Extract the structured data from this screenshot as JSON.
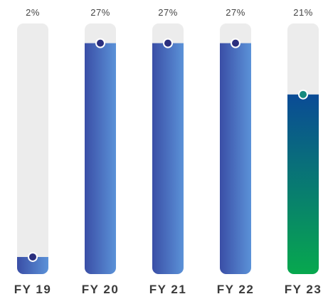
{
  "chart_data": {
    "type": "progress-bar",
    "categories": [
      "FY 19",
      "FY 20",
      "FY 21",
      "FY 22",
      "FY 23"
    ],
    "values": [
      2,
      27,
      27,
      27,
      21
    ],
    "value_labels": [
      "2%",
      "27%",
      "27%",
      "27%",
      "21%"
    ],
    "ylim": [
      0,
      29.3
    ],
    "track_color": "#ececec",
    "fills": [
      {
        "from": "#3a4ea6",
        "to": "#5b92d8",
        "direction": "horizontal",
        "dot": "#2b2f7e"
      },
      {
        "from": "#3a4ea6",
        "to": "#5b92d8",
        "direction": "horizontal",
        "dot": "#2b2f7e"
      },
      {
        "from": "#3a4ea6",
        "to": "#5b92d8",
        "direction": "horizontal",
        "dot": "#2b2f7e"
      },
      {
        "from": "#3a4ea6",
        "to": "#5b92d8",
        "direction": "horizontal",
        "dot": "#2b2f7e"
      },
      {
        "from": "#0a4b96",
        "to": "#07a84e",
        "direction": "vertical",
        "dot": "#168a7e"
      }
    ]
  }
}
